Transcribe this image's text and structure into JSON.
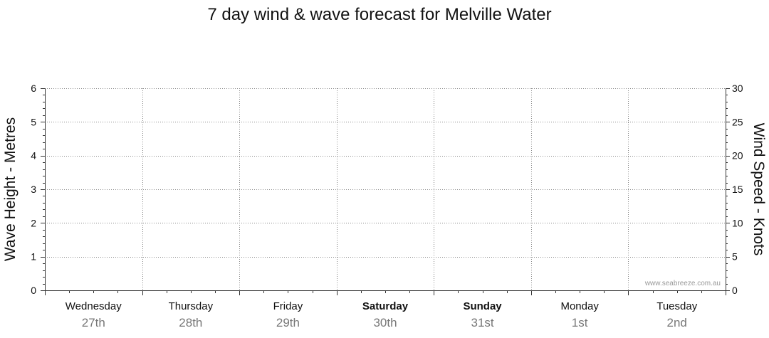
{
  "chart_data": {
    "type": "line",
    "title": "7 day wind & wave forecast for Melville Water",
    "y_left": {
      "label": "Wave Height - Metres",
      "min": 0,
      "max": 6,
      "ticks": [
        0,
        1,
        2,
        3,
        4,
        5,
        6
      ]
    },
    "y_right": {
      "label": "Wind Speed - Knots",
      "min": 0,
      "max": 30,
      "ticks": [
        0,
        5,
        10,
        15,
        20,
        25,
        30
      ]
    },
    "days": [
      {
        "name": "Wednesday",
        "date": "27th",
        "weekend": false
      },
      {
        "name": "Thursday",
        "date": "28th",
        "weekend": false
      },
      {
        "name": "Friday",
        "date": "29th",
        "weekend": false
      },
      {
        "name": "Saturday",
        "date": "30th",
        "weekend": true
      },
      {
        "name": "Sunday",
        "date": "31st",
        "weekend": true
      },
      {
        "name": "Monday",
        "date": "1st",
        "weekend": false
      },
      {
        "name": "Tuesday",
        "date": "2nd",
        "weekend": false
      }
    ],
    "series": [],
    "grid": true,
    "watermark": "www.seabreeze.com.au",
    "colors": {
      "grid": "#888888",
      "axis": "#333333",
      "date_text": "#777777"
    }
  }
}
